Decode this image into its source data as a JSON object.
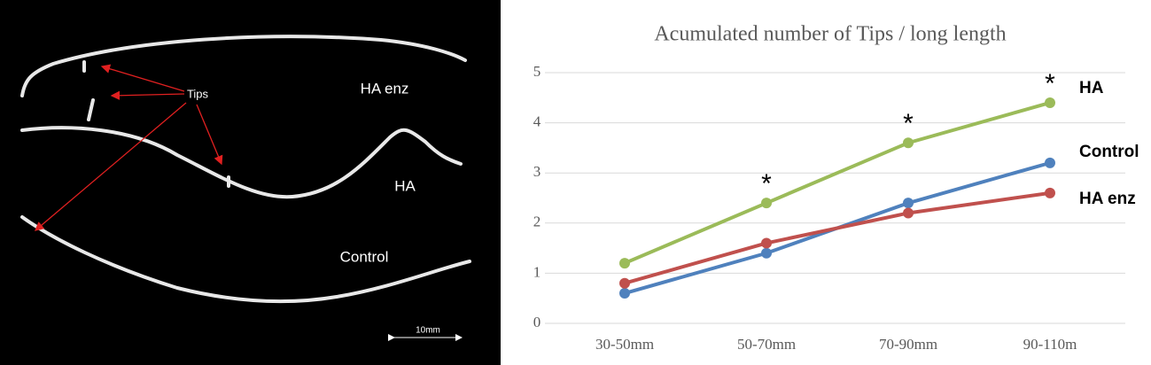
{
  "image_panel": {
    "labels": [
      "Tips",
      "HA enz",
      "HA",
      "Control",
      "10mm"
    ]
  },
  "chart_data": {
    "type": "line",
    "title": "Acumulated number of Tips / long length",
    "categories": [
      "30-50mm",
      "50-70mm",
      "70-90mm",
      "90-110m"
    ],
    "series": [
      {
        "name": "HA",
        "color": "#9bbb59",
        "values": [
          1.2,
          2.4,
          3.6,
          4.4
        ]
      },
      {
        "name": "Control",
        "color": "#4f81bd",
        "values": [
          0.6,
          1.4,
          2.4,
          3.2
        ]
      },
      {
        "name": "HA enz",
        "color": "#c0504d",
        "values": [
          0.8,
          1.6,
          2.2,
          2.6
        ]
      }
    ],
    "annotations": [
      "*",
      "*",
      "*"
    ],
    "ylim": [
      0,
      5
    ],
    "yticks": [
      0,
      1,
      2,
      3,
      4,
      5
    ],
    "grid": true
  }
}
